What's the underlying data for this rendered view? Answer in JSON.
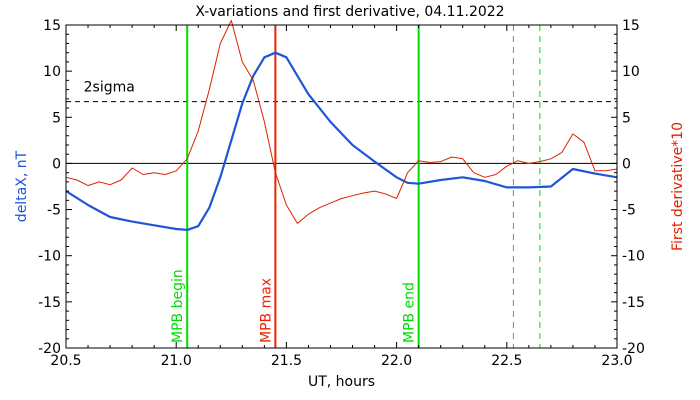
{
  "chart_data": {
    "type": "line",
    "title": "X-variations and first derivative, 04.11.2022",
    "xlabel": "UT, hours",
    "ylabel_left": "deltaX, nT",
    "ylabel_right": "First derivative*10",
    "xlim": [
      20.5,
      23.0
    ],
    "ylim": [
      -20,
      15
    ],
    "x_ticks": [
      20.5,
      21.0,
      21.5,
      22.0,
      22.5,
      23.0
    ],
    "x_tick_labels": [
      "20.5",
      "21.0",
      "21.5",
      "22.0",
      "22.5",
      "23.0"
    ],
    "y_ticks": [
      -20,
      -15,
      -10,
      -5,
      0,
      5,
      10,
      15
    ],
    "y_tick_labels": [
      "-20",
      "-15",
      "-10",
      "-5",
      "0",
      "5",
      "10",
      "15"
    ],
    "zero_line": 0,
    "threshold": {
      "label": "2sigma",
      "value": 6.7
    },
    "events": [
      {
        "label": "MPB begin",
        "x": 21.05,
        "color": "#00dd00",
        "style": "solid"
      },
      {
        "label": "MPB max",
        "x": 21.45,
        "color": "#ee2200",
        "style": "solid"
      },
      {
        "label": "MPB end",
        "x": 22.1,
        "color": "#00dd00",
        "style": "solid"
      },
      {
        "label": "",
        "x": 22.53,
        "color": "#00dd00",
        "style": "dashed"
      },
      {
        "label": "",
        "x": 22.65,
        "color": "#00dd00",
        "style": "dashed"
      }
    ],
    "series": [
      {
        "id": "deltax",
        "color": "#1f55d8",
        "x": [
          20.5,
          20.6,
          20.7,
          20.8,
          20.9,
          21.0,
          21.05,
          21.1,
          21.15,
          21.2,
          21.25,
          21.3,
          21.35,
          21.4,
          21.45,
          21.5,
          21.55,
          21.6,
          21.7,
          21.8,
          21.9,
          22.0,
          22.05,
          22.1,
          22.2,
          22.3,
          22.4,
          22.5,
          22.6,
          22.7,
          22.8,
          22.9,
          23.0
        ],
        "y": [
          -3.0,
          -4.5,
          -5.8,
          -6.3,
          -6.7,
          -7.1,
          -7.2,
          -6.8,
          -4.8,
          -1.5,
          2.5,
          6.5,
          9.5,
          11.5,
          12.0,
          11.5,
          9.5,
          7.5,
          4.5,
          2.0,
          0.2,
          -1.5,
          -2.1,
          -2.2,
          -1.8,
          -1.5,
          -1.9,
          -2.6,
          -2.6,
          -2.5,
          -0.6,
          -1.1,
          -1.5
        ]
      },
      {
        "id": "derivative",
        "color": "#dd2200",
        "x": [
          20.5,
          20.55,
          20.6,
          20.65,
          20.7,
          20.75,
          20.8,
          20.85,
          20.9,
          20.95,
          21.0,
          21.05,
          21.1,
          21.15,
          21.2,
          21.25,
          21.3,
          21.35,
          21.4,
          21.45,
          21.5,
          21.55,
          21.6,
          21.65,
          21.7,
          21.75,
          21.8,
          21.85,
          21.9,
          21.95,
          22.0,
          22.05,
          22.1,
          22.15,
          22.2,
          22.25,
          22.3,
          22.35,
          22.4,
          22.45,
          22.5,
          22.55,
          22.6,
          22.65,
          22.7,
          22.75,
          22.8,
          22.85,
          22.9,
          22.95,
          23.0
        ],
        "y": [
          -1.5,
          -1.8,
          -2.4,
          -2.0,
          -2.3,
          -1.8,
          -0.5,
          -1.2,
          -1.0,
          -1.2,
          -0.8,
          0.5,
          3.5,
          8.0,
          13.0,
          15.5,
          11.0,
          9.0,
          4.5,
          -1.0,
          -4.5,
          -6.5,
          -5.5,
          -4.8,
          -4.3,
          -3.8,
          -3.5,
          -3.2,
          -3.0,
          -3.3,
          -3.8,
          -1.0,
          0.3,
          0.1,
          0.2,
          0.7,
          0.5,
          -1.0,
          -1.5,
          -1.2,
          -0.3,
          0.3,
          0.0,
          0.2,
          0.5,
          1.2,
          3.2,
          2.3,
          -0.8,
          -0.8,
          -0.6
        ]
      }
    ]
  }
}
